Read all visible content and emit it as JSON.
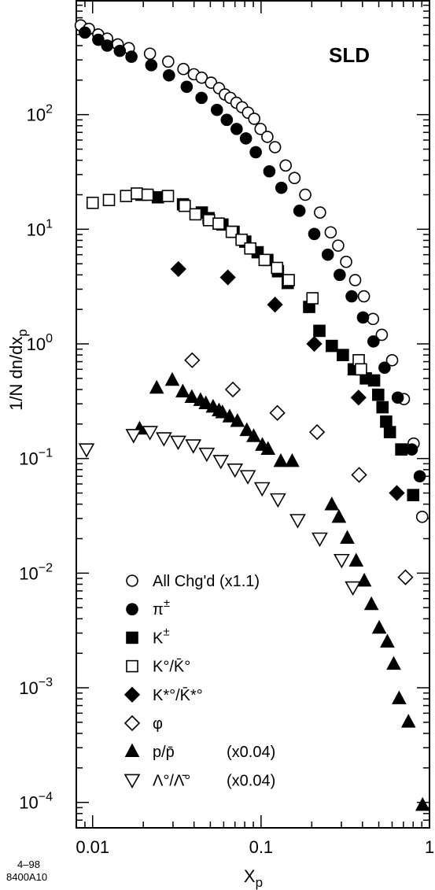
{
  "chart_data": {
    "type": "scatter",
    "label": "SLD",
    "x_scale": "log",
    "y_scale": "log",
    "xlim": [
      0.008,
      1.0
    ],
    "ylim": [
      6e-05,
      1000
    ],
    "xlabel": "X",
    "xlabel_sub": "p",
    "ylabel": "1/N dn/dx",
    "ylabel_sub": "p",
    "x_ticks": [
      {
        "value": 0.01,
        "label": "0.01"
      },
      {
        "value": 0.1,
        "label": "0.1"
      },
      {
        "value": 1,
        "label": "1"
      }
    ],
    "y_ticks": [
      {
        "value": 100,
        "base": "10",
        "exp": "2"
      },
      {
        "value": 10,
        "base": "10",
        "exp": "1"
      },
      {
        "value": 1,
        "base": "10",
        "exp": "0"
      },
      {
        "value": 0.1,
        "base": "10",
        "exp": "−1"
      },
      {
        "value": 0.01,
        "base": "10",
        "exp": "−2"
      },
      {
        "value": 0.001,
        "base": "10",
        "exp": "−3"
      },
      {
        "value": 0.0001,
        "base": "10",
        "exp": "−4"
      }
    ],
    "series": [
      {
        "name": "All Chg'd (x1.1)",
        "marker": "circle-open",
        "points": [
          [
            0.0085,
            600
          ],
          [
            0.0095,
            560
          ],
          [
            0.0108,
            500
          ],
          [
            0.0122,
            460
          ],
          [
            0.0141,
            410
          ],
          [
            0.0164,
            380
          ],
          [
            0.0219,
            340
          ],
          [
            0.0281,
            290
          ],
          [
            0.0346,
            250
          ],
          [
            0.0399,
            225
          ],
          [
            0.0444,
            210
          ],
          [
            0.0505,
            190
          ],
          [
            0.0563,
            170
          ],
          [
            0.061,
            150
          ],
          [
            0.0657,
            140
          ],
          [
            0.0714,
            127
          ],
          [
            0.0772,
            116
          ],
          [
            0.0837,
            104
          ],
          [
            0.0911,
            92
          ],
          [
            0.0993,
            75
          ],
          [
            0.109,
            64
          ],
          [
            0.121,
            52
          ],
          [
            0.14,
            36
          ],
          [
            0.158,
            28
          ],
          [
            0.183,
            20
          ],
          [
            0.224,
            14
          ],
          [
            0.259,
            9.4
          ],
          [
            0.287,
            7.2
          ],
          [
            0.32,
            5.2
          ],
          [
            0.362,
            3.6
          ],
          [
            0.408,
            2.6
          ],
          [
            0.462,
            1.65
          ],
          [
            0.521,
            1.2
          ],
          [
            0.6,
            0.72
          ],
          [
            0.705,
            0.33
          ],
          [
            0.805,
            0.135
          ],
          [
            0.905,
            0.031
          ]
        ]
      },
      {
        "name": "π±",
        "marker": "circle-filled",
        "points": [
          [
            0.009,
            520
          ],
          [
            0.0108,
            450
          ],
          [
            0.0122,
            400
          ],
          [
            0.0145,
            360
          ],
          [
            0.017,
            320
          ],
          [
            0.0223,
            270
          ],
          [
            0.0284,
            220
          ],
          [
            0.0362,
            175
          ],
          [
            0.0443,
            140
          ],
          [
            0.0547,
            110
          ],
          [
            0.0626,
            90
          ],
          [
            0.0716,
            75
          ],
          [
            0.0813,
            62
          ],
          [
            0.093,
            47
          ],
          [
            0.112,
            32
          ],
          [
            0.132,
            23
          ],
          [
            0.169,
            14.5
          ],
          [
            0.207,
            9.1
          ],
          [
            0.249,
            6.0
          ],
          [
            0.293,
            4.0
          ],
          [
            0.345,
            2.6
          ],
          [
            0.403,
            1.7
          ],
          [
            0.465,
            1.05
          ],
          [
            0.541,
            0.62
          ],
          [
            0.648,
            0.34
          ],
          [
            0.785,
            0.12
          ],
          [
            0.875,
            0.07
          ]
        ]
      },
      {
        "name": "K±",
        "marker": "square-filled",
        "points": [
          [
            0.0195,
            20
          ],
          [
            0.0244,
            19
          ],
          [
            0.0344,
            16.5
          ],
          [
            0.0445,
            14
          ],
          [
            0.0488,
            12.5
          ],
          [
            0.059,
            11
          ],
          [
            0.0687,
            9.5
          ],
          [
            0.0806,
            7.8
          ],
          [
            0.0954,
            6.3
          ],
          [
            0.109,
            5.4
          ],
          [
            0.126,
            4.3
          ],
          [
            0.144,
            3.4
          ],
          [
            0.193,
            2.1
          ],
          [
            0.222,
            1.3
          ],
          [
            0.263,
            0.96
          ],
          [
            0.306,
            0.8
          ],
          [
            0.355,
            0.6
          ],
          [
            0.419,
            0.5
          ],
          [
            0.469,
            0.48
          ],
          [
            0.496,
            0.36
          ],
          [
            0.526,
            0.28
          ],
          [
            0.553,
            0.21
          ],
          [
            0.582,
            0.17
          ],
          [
            0.68,
            0.12
          ],
          [
            0.8,
            0.048
          ]
        ]
      },
      {
        "name": "K°/K̄°",
        "marker": "square-open",
        "points": [
          [
            0.01,
            17
          ],
          [
            0.0125,
            18
          ],
          [
            0.0158,
            19.5
          ],
          [
            0.0183,
            20.5
          ],
          [
            0.0212,
            20
          ],
          [
            0.028,
            19.5
          ],
          [
            0.0352,
            16
          ],
          [
            0.0408,
            13.5
          ],
          [
            0.0491,
            12
          ],
          [
            0.056,
            11.2
          ],
          [
            0.067,
            9.5
          ],
          [
            0.0766,
            8.1
          ],
          [
            0.0863,
            6.8
          ],
          [
            0.105,
            5.4
          ],
          [
            0.1245,
            4.6
          ],
          [
            0.146,
            3.6
          ],
          [
            0.202,
            2.5
          ],
          [
            0.38,
            0.72
          ],
          [
            0.392,
            0.6
          ]
        ]
      },
      {
        "name": "K*°/K̄*°",
        "marker": "diamond-filled",
        "points": [
          [
            0.0323,
            4.5
          ],
          [
            0.0635,
            3.8
          ],
          [
            0.121,
            2.2
          ],
          [
            0.207,
            1.0
          ],
          [
            0.379,
            0.34
          ],
          [
            0.64,
            0.05
          ]
        ]
      },
      {
        "name": "φ",
        "marker": "diamond-open",
        "points": [
          [
            0.039,
            0.72
          ],
          [
            0.068,
            0.4
          ],
          [
            0.125,
            0.25
          ],
          [
            0.215,
            0.17
          ],
          [
            0.382,
            0.072
          ],
          [
            0.72,
            0.0092
          ]
        ]
      },
      {
        "name": "p/p̄ (x0.04)",
        "marker": "triangle-up-filled",
        "points": [
          [
            0.019,
            0.18
          ],
          [
            0.024,
            0.41
          ],
          [
            0.0297,
            0.48
          ],
          [
            0.0343,
            0.38
          ],
          [
            0.0388,
            0.34
          ],
          [
            0.0437,
            0.32
          ],
          [
            0.047,
            0.3
          ],
          [
            0.0519,
            0.28
          ],
          [
            0.0563,
            0.26
          ],
          [
            0.059,
            0.25
          ],
          [
            0.0651,
            0.23
          ],
          [
            0.0724,
            0.21
          ],
          [
            0.0823,
            0.175
          ],
          [
            0.0904,
            0.155
          ],
          [
            0.1018,
            0.13
          ],
          [
            0.11,
            0.12
          ],
          [
            0.131,
            0.094
          ],
          [
            0.153,
            0.094
          ],
          [
            0.263,
            0.0393
          ],
          [
            0.29,
            0.0306
          ],
          [
            0.325,
            0.0201
          ],
          [
            0.367,
            0.0127
          ],
          [
            0.41,
            0.0085
          ],
          [
            0.452,
            0.0053
          ],
          [
            0.503,
            0.0033
          ],
          [
            0.562,
            0.0025
          ],
          [
            0.613,
            0.0016
          ],
          [
            0.66,
            0.0008
          ],
          [
            0.75,
            0.0005
          ],
          [
            0.91,
            9.4e-05
          ]
        ]
      },
      {
        "name": "Λ°/Λ̄° (x0.04)",
        "marker": "triangle-down-open",
        "points": [
          [
            0.0092,
            0.12
          ],
          [
            0.0175,
            0.16
          ],
          [
            0.0219,
            0.17
          ],
          [
            0.0265,
            0.15
          ],
          [
            0.0322,
            0.14
          ],
          [
            0.0396,
            0.13
          ],
          [
            0.0476,
            0.11
          ],
          [
            0.0577,
            0.095
          ],
          [
            0.07,
            0.08
          ],
          [
            0.0835,
            0.07
          ],
          [
            0.1015,
            0.055
          ],
          [
            0.126,
            0.044
          ],
          [
            0.165,
            0.029
          ],
          [
            0.223,
            0.02
          ],
          [
            0.301,
            0.013
          ],
          [
            0.351,
            0.0075
          ]
        ]
      }
    ]
  },
  "legend": [
    {
      "marker": "circle-open",
      "parts": [
        {
          "t": "All Chg'd (x1.1)"
        }
      ]
    },
    {
      "marker": "circle-filled",
      "parts": [
        {
          "t": "π"
        },
        {
          "t": "±",
          "cls": "sup"
        }
      ]
    },
    {
      "marker": "square-filled",
      "parts": [
        {
          "t": "K"
        },
        {
          "t": "±",
          "cls": "sup"
        }
      ]
    },
    {
      "marker": "square-open",
      "parts": [
        {
          "t": "K°/K̄°"
        }
      ]
    },
    {
      "marker": "diamond-filled",
      "parts": [
        {
          "t": "K*°/K̄*°"
        }
      ]
    },
    {
      "marker": "diamond-open",
      "parts": [
        {
          "t": "φ"
        }
      ]
    },
    {
      "marker": "triangle-up-filled",
      "parts": [
        {
          "t": "p/p̄"
        }
      ],
      "note": "(x0.04)"
    },
    {
      "marker": "triangle-down-open",
      "parts": [
        {
          "t": "Λ°/Λ̄°"
        }
      ],
      "note": "(x0.04)"
    }
  ],
  "footer": {
    "code_top": "4–98",
    "code_bottom": "8400A10"
  }
}
